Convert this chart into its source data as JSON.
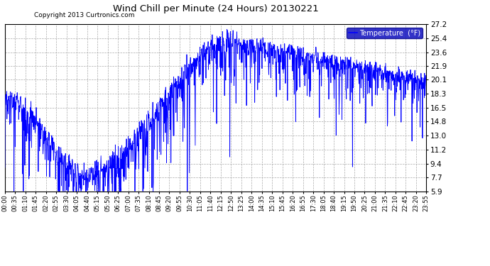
{
  "title": "Wind Chill per Minute (24 Hours) 20130221",
  "copyright_text": "Copyright 2013 Curtronics.com",
  "legend_label": "Temperature  (°F)",
  "line_color": "#0000ff",
  "background_color": "#ffffff",
  "plot_background_color": "#ffffff",
  "grid_color": "#aaaaaa",
  "yticks": [
    5.9,
    7.7,
    9.4,
    11.2,
    13.0,
    14.8,
    16.5,
    18.3,
    20.1,
    21.9,
    23.6,
    25.4,
    27.2
  ],
  "ymin": 5.9,
  "ymax": 27.2,
  "num_minutes": 1440,
  "seed": 42,
  "xtick_labels": [
    "00:00",
    "00:35",
    "01:10",
    "01:45",
    "02:20",
    "02:55",
    "03:30",
    "04:05",
    "04:40",
    "05:15",
    "05:50",
    "06:25",
    "07:00",
    "07:35",
    "08:10",
    "08:45",
    "09:20",
    "09:55",
    "10:30",
    "11:05",
    "11:40",
    "12:15",
    "12:50",
    "13:25",
    "14:00",
    "14:35",
    "15:10",
    "15:45",
    "16:20",
    "16:55",
    "17:30",
    "18:05",
    "18:40",
    "19:15",
    "19:50",
    "20:25",
    "21:00",
    "21:35",
    "22:10",
    "22:45",
    "23:20",
    "23:55"
  ]
}
